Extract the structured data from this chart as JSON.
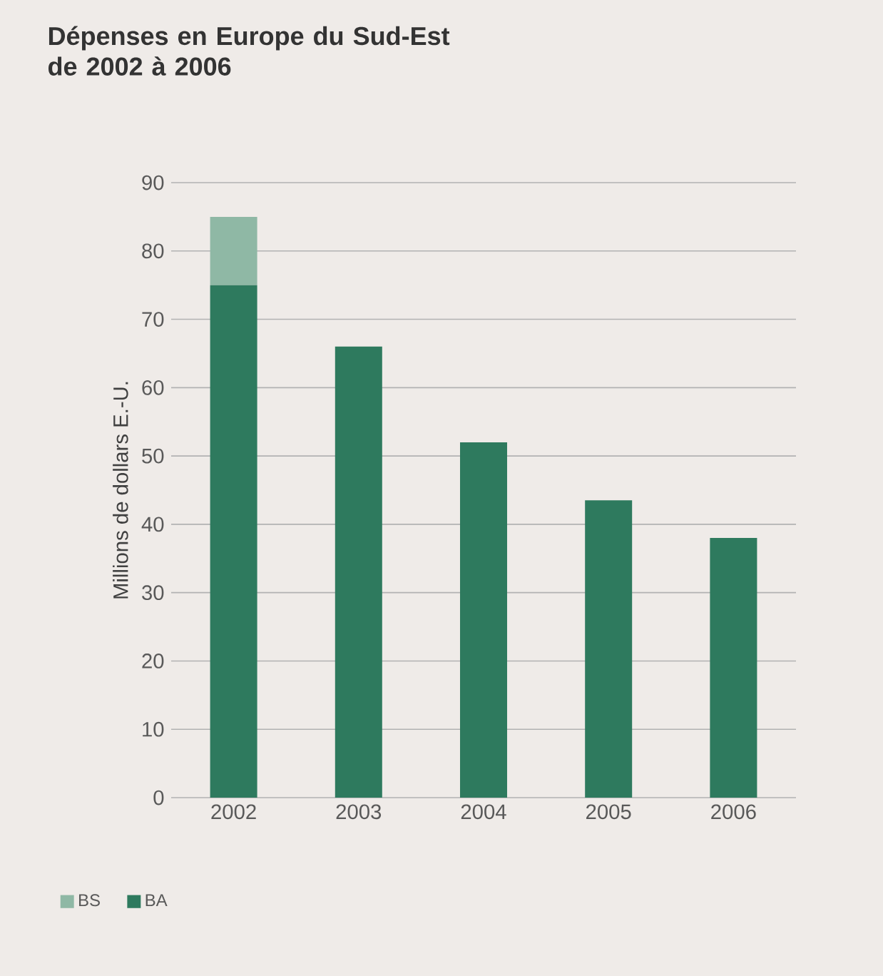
{
  "chart_data": {
    "type": "bar",
    "title": "Dépenses en Europe du Sud-Est de 2002 à 2006",
    "ylabel": "Millions de dollars E.-U.",
    "categories": [
      "2002",
      "2003",
      "2004",
      "2005",
      "2006"
    ],
    "stacked": true,
    "series": [
      {
        "name": "BA",
        "color": "#2e7a5e",
        "values": [
          75,
          66,
          52,
          43.5,
          38
        ]
      },
      {
        "name": "BS",
        "color": "#8fb8a5",
        "values": [
          10,
          null,
          null,
          null,
          null
        ]
      }
    ],
    "ylim": [
      0,
      90
    ],
    "yticks": [
      0,
      10,
      20,
      30,
      40,
      50,
      60,
      70,
      80,
      90
    ],
    "grid": "y",
    "legend": "bottom left"
  }
}
